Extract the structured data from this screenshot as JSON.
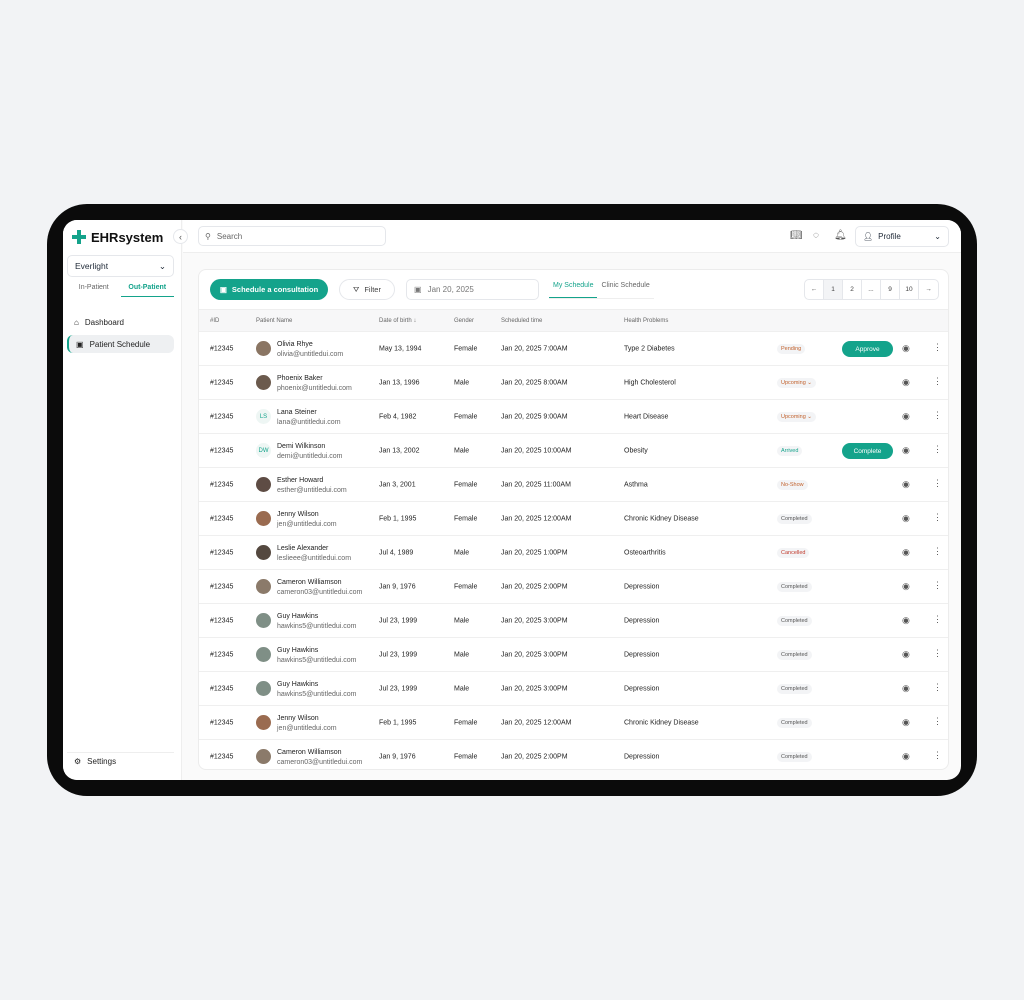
{
  "app": {
    "name": "EHRsystem",
    "brand_color": "#14a38b"
  },
  "sidebar": {
    "org": "Everlight",
    "tabs": [
      "In-Patient",
      "Out-Patient"
    ],
    "items": [
      {
        "label": "Dashboard",
        "icon": "home-icon"
      },
      {
        "label": "Patient Schedule",
        "icon": "calendar-icon"
      }
    ],
    "settings": "Settings"
  },
  "topbar": {
    "search_placeholder": "Search",
    "profile": "Profile"
  },
  "toolbar": {
    "schedule": "Schedule a consultation",
    "filter": "Filter",
    "date": "Jan 20, 2025",
    "tabs": [
      "My Schedule",
      "Clinic Schedule"
    ],
    "pages": [
      "1",
      "2",
      "...",
      "9",
      "10"
    ]
  },
  "table": {
    "headers": [
      "#ID",
      "Patient Name",
      "Date of birth",
      "Gender",
      "Scheduled time",
      "Health Problems"
    ],
    "rows": [
      {
        "id": "#12345",
        "name": "Olivia Rhye",
        "email": "olivia@untitledui.com",
        "dob": "May 13, 1994",
        "gender": "Female",
        "time": "Jan 20, 2025 7:00AM",
        "problem": "Type 2 Diabetes",
        "status": "Pending",
        "action": "Approve"
      },
      {
        "id": "#12345",
        "name": "Phoenix Baker",
        "email": "phoenix@untitledui.com",
        "dob": "Jan 13, 1996",
        "gender": "Male",
        "time": "Jan 20, 2025 8:00AM",
        "problem": "High Cholesterol",
        "status": "Upcoming"
      },
      {
        "id": "#12345",
        "name": "Lana Steiner",
        "email": "lana@untitledui.com",
        "dob": "Feb 4, 1982",
        "gender": "Female",
        "time": "Jan 20, 2025 9:00AM",
        "problem": "Heart Disease",
        "status": "Upcoming",
        "initials": "LS"
      },
      {
        "id": "#12345",
        "name": "Demi Wilkinson",
        "email": "demi@untitledui.com",
        "dob": "Jan 13, 2002",
        "gender": "Male",
        "time": "Jan 20, 2025 10:00AM",
        "problem": "Obesity",
        "status": "Arrived",
        "action": "Complete",
        "initials": "DW"
      },
      {
        "id": "#12345",
        "name": "Esther Howard",
        "email": "esther@untitledui.com",
        "dob": "Jan 3, 2001",
        "gender": "Female",
        "time": "Jan 20, 2025 11:00AM",
        "problem": "Asthma",
        "status": "No-Show"
      },
      {
        "id": "#12345",
        "name": "Jenny Wilson",
        "email": "jen@untitledui.com",
        "dob": "Feb 1, 1995",
        "gender": "Female",
        "time": "Jan 20, 2025 12:00AM",
        "problem": "Chronic Kidney Disease",
        "status": "Completed"
      },
      {
        "id": "#12345",
        "name": "Leslie Alexander",
        "email": "leslieee@untitledui.com",
        "dob": "Jul 4, 1989",
        "gender": "Male",
        "time": "Jan 20, 2025 1:00PM",
        "problem": "Osteoarthritis",
        "status": "Cancelled"
      },
      {
        "id": "#12345",
        "name": "Cameron Williamson",
        "email": "cameron03@untitledui.com",
        "dob": "Jan 9, 1976",
        "gender": "Female",
        "time": "Jan 20, 2025 2:00PM",
        "problem": "Depression",
        "status": "Completed"
      },
      {
        "id": "#12345",
        "name": "Guy Hawkins",
        "email": "hawkins5@untitledui.com",
        "dob": "Jul 23, 1999",
        "gender": "Male",
        "time": "Jan 20, 2025 3:00PM",
        "problem": "Depression",
        "status": "Completed"
      },
      {
        "id": "#12345",
        "name": "Guy Hawkins",
        "email": "hawkins5@untitledui.com",
        "dob": "Jul 23, 1999",
        "gender": "Male",
        "time": "Jan 20, 2025 3:00PM",
        "problem": "Depression",
        "status": "Completed"
      },
      {
        "id": "#12345",
        "name": "Guy Hawkins",
        "email": "hawkins5@untitledui.com",
        "dob": "Jul 23, 1999",
        "gender": "Male",
        "time": "Jan 20, 2025 3:00PM",
        "problem": "Depression",
        "status": "Completed"
      },
      {
        "id": "#12345",
        "name": "Jenny Wilson",
        "email": "jen@untitledui.com",
        "dob": "Feb 1, 1995",
        "gender": "Female",
        "time": "Jan 20, 2025 12:00AM",
        "problem": "Chronic Kidney Disease",
        "status": "Completed"
      },
      {
        "id": "#12345",
        "name": "Cameron Williamson",
        "email": "cameron03@untitledui.com",
        "dob": "Jan 9, 1976",
        "gender": "Female",
        "time": "Jan 20, 2025 2:00PM",
        "problem": "Depression",
        "status": "Completed"
      }
    ]
  },
  "status_colors": {
    "Pending": "#c2612c",
    "Upcoming": "#c2612c",
    "Arrived": "#14a38b",
    "No-Show": "#c2612c",
    "Completed": "#555555",
    "Cancelled": "#c0392b"
  }
}
